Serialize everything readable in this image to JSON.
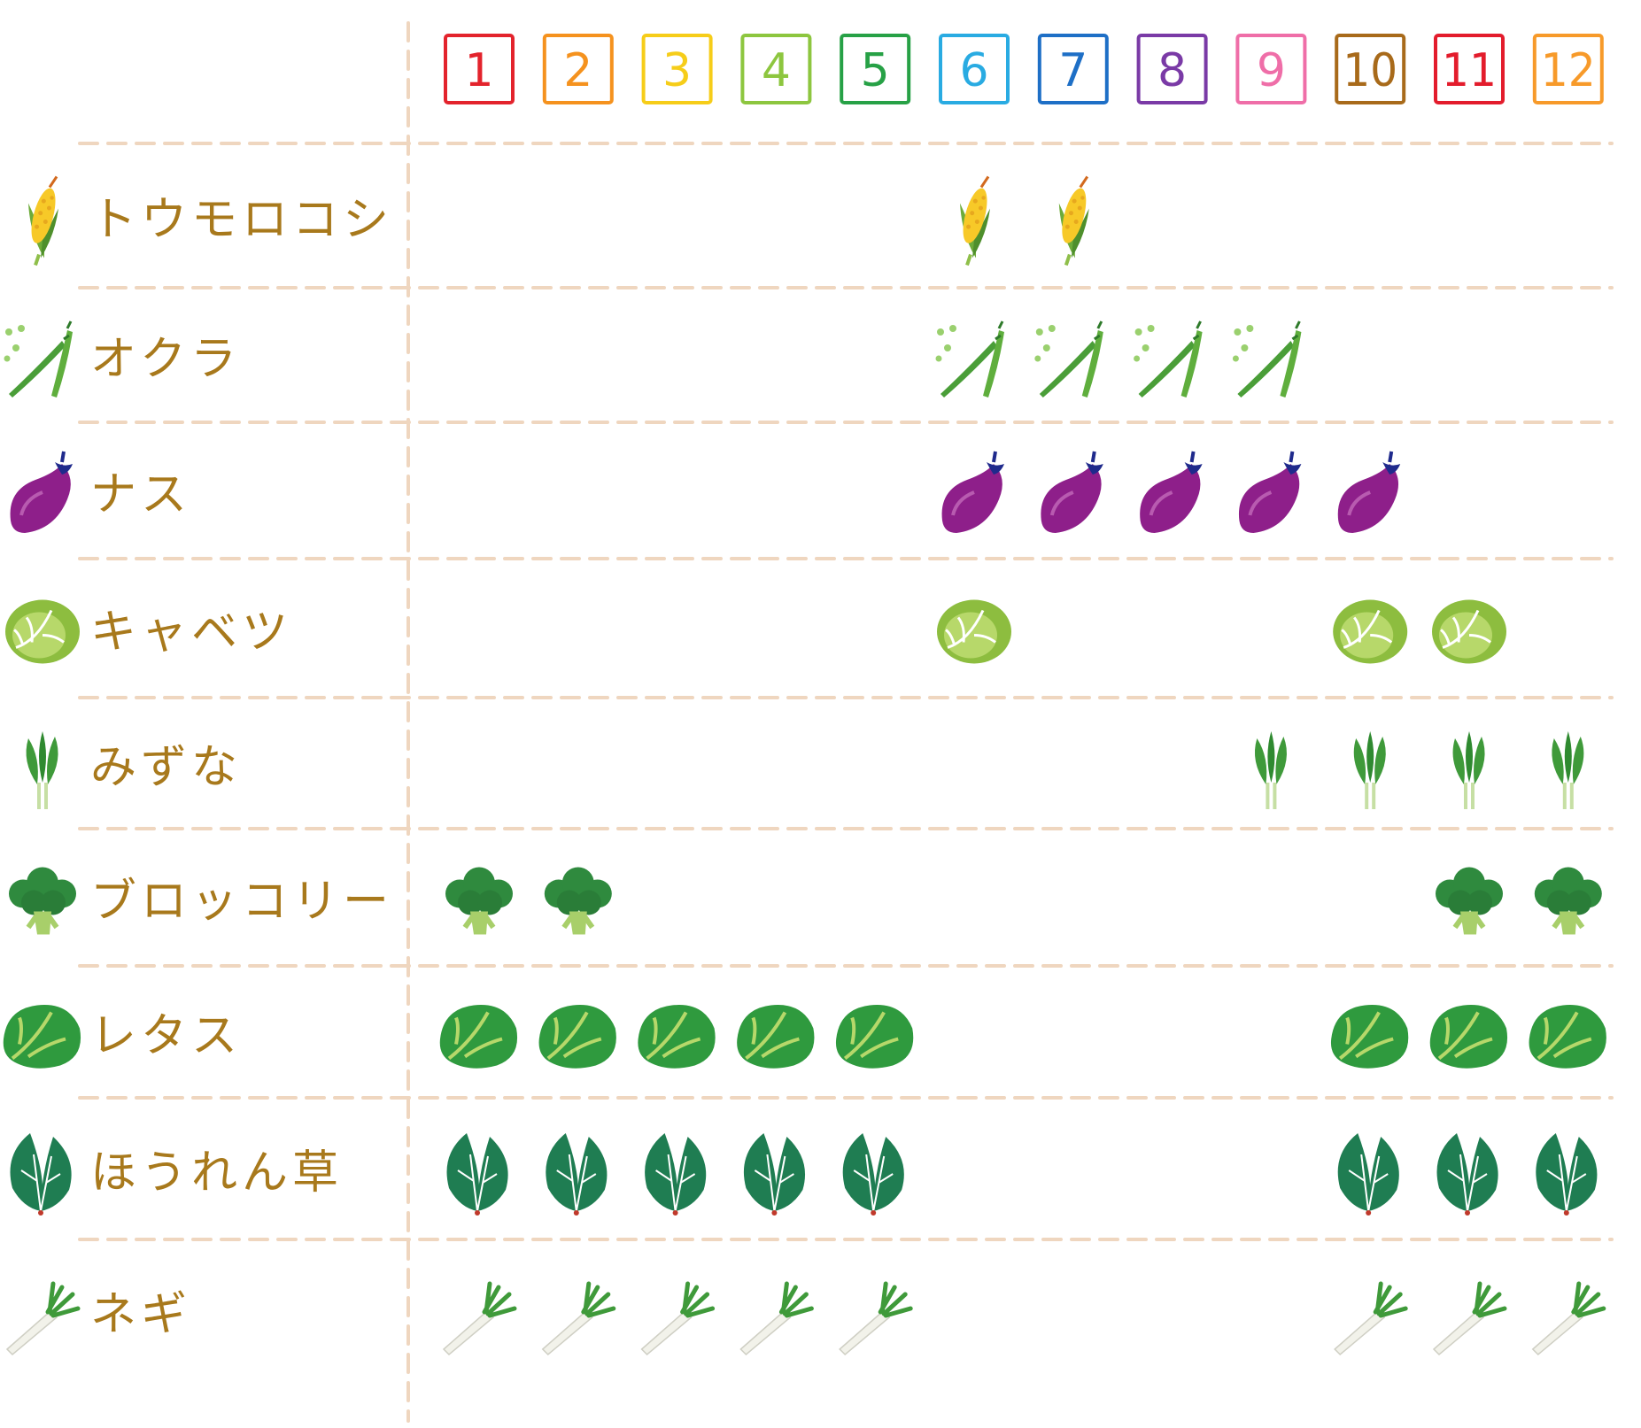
{
  "chart_data": {
    "type": "table",
    "months": [
      "1",
      "2",
      "3",
      "4",
      "5",
      "6",
      "7",
      "8",
      "9",
      "10",
      "11",
      "12"
    ],
    "month_colors": [
      "#e3232c",
      "#f5921e",
      "#f6cd19",
      "#8dc63f",
      "#27a146",
      "#29abe2",
      "#1e6fc6",
      "#7a3aa6",
      "#ef6ea8",
      "#a86a1a",
      "#e31c2c",
      "#f79a2a"
    ],
    "rows": [
      {
        "label": "トウモロコシ",
        "icon": "corn-icon",
        "months": [
          6,
          7
        ]
      },
      {
        "label": "オクラ",
        "icon": "okra-icon",
        "months": [
          6,
          7,
          8,
          9
        ]
      },
      {
        "label": "ナス",
        "icon": "eggplant-icon",
        "months": [
          6,
          7,
          8,
          9,
          10
        ]
      },
      {
        "label": "キャベツ",
        "icon": "cabbage-icon",
        "months": [
          6,
          10,
          11
        ]
      },
      {
        "label": "みずな",
        "icon": "mizuna-icon",
        "months": [
          9,
          10,
          11,
          12
        ]
      },
      {
        "label": "ブロッコリー",
        "icon": "broccoli-icon",
        "months": [
          1,
          2,
          11,
          12
        ]
      },
      {
        "label": "レタス",
        "icon": "lettuce-icon",
        "months": [
          1,
          2,
          3,
          4,
          5,
          10,
          11,
          12
        ]
      },
      {
        "label": "ほうれん草",
        "icon": "spinach-icon",
        "months": [
          1,
          2,
          3,
          4,
          5,
          10,
          11,
          12
        ]
      },
      {
        "label": "ネギ",
        "icon": "leek-icon",
        "months": [
          1,
          2,
          3,
          4,
          5,
          10,
          11,
          12
        ]
      }
    ]
  }
}
